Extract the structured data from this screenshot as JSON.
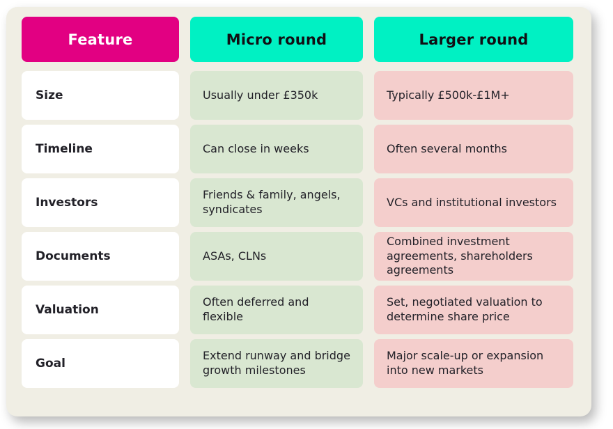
{
  "chart_data": {
    "type": "table",
    "columns": [
      "Feature",
      "Micro round",
      "Larger round"
    ],
    "rows": [
      [
        "Size",
        "Usually under £350k",
        "Typically £500k-£1M+"
      ],
      [
        "Timeline",
        "Can close in weeks",
        "Often several months"
      ],
      [
        "Investors",
        "Friends & family, angels, syndicates",
        "VCs and institutional investors"
      ],
      [
        "Documents",
        "ASAs, CLNs",
        "Combined investment agreements, shareholders agreements"
      ],
      [
        "Valuation",
        "Often deferred and flexible",
        "Set, negotiated valuation to determine share price"
      ],
      [
        "Goal",
        "Extend runway and bridge growth milestones",
        "Major scale-up or expansion into new markets"
      ]
    ]
  },
  "colors": {
    "feature_header_bg": "#E20082",
    "round_header_bg": "#00F1C3",
    "micro_cell_bg": "#D9E7D1",
    "larger_cell_bg": "#F4CECC",
    "feature_cell_bg": "#FFFFFF",
    "card_bg": "#F0EEE4",
    "page_bg": "#FFFFFF",
    "text_dark": "#222128",
    "header_text_light": "#FFFFFF",
    "header_text_dark": "#111014"
  }
}
